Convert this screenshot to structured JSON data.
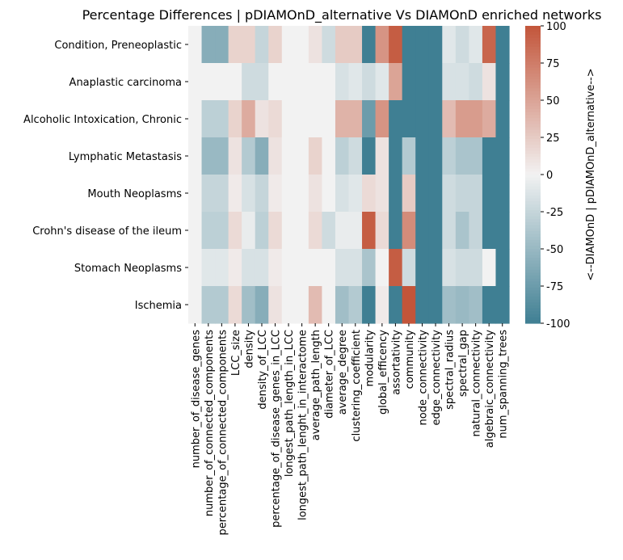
{
  "chart_data": {
    "type": "heatmap",
    "title": "Percentage Differences | pDIAMOnD_alternative Vs DIAMOnD enriched networks",
    "rows": [
      "Condition, Preneoplastic",
      "Anaplastic carcinoma",
      "Alcoholic Intoxication, Chronic",
      "Lymphatic Metastasis",
      "Mouth Neoplasms",
      "Crohn's disease of the ileum",
      "Stomach Neoplasms",
      "Ischemia"
    ],
    "columns": [
      "number_of_disease_genes",
      "number_of_connected_components",
      "percentage_of_connected_components",
      "LCC_size",
      "density",
      "density_of_LCC",
      "percentage_of_disease_genes_in_LCC",
      "longest_path_length_in_LCC",
      "longest_path_lenght_in_interactome",
      "average_path_length",
      "diameter_of_LCC",
      "average_degree",
      "clustering_coefficient",
      "modularity",
      "global_efficency",
      "assortativity",
      "community",
      "node_connectivity",
      "edge_connectivity",
      "spectral_radius",
      "spectral_gap",
      "natural_connectivity",
      "algebraic_connectivity",
      "num_spanning_trees"
    ],
    "values": [
      [
        0,
        -60,
        -60,
        20,
        20,
        -25,
        20,
        0,
        0,
        10,
        -20,
        25,
        25,
        -100,
        60,
        95,
        -100,
        -100,
        -100,
        -10,
        -20,
        -10,
        90,
        -100
      ],
      [
        0,
        0,
        0,
        0,
        -20,
        -20,
        0,
        0,
        0,
        0,
        0,
        -15,
        -10,
        -20,
        -10,
        50,
        -100,
        -100,
        -100,
        -15,
        -15,
        -20,
        10,
        -100
      ],
      [
        0,
        -30,
        -30,
        20,
        45,
        10,
        15,
        0,
        0,
        0,
        0,
        40,
        40,
        -75,
        60,
        -100,
        -100,
        -100,
        -100,
        35,
        55,
        55,
        45,
        -100
      ],
      [
        0,
        -50,
        -50,
        10,
        -35,
        -60,
        10,
        0,
        0,
        20,
        0,
        -30,
        -20,
        -100,
        10,
        -100,
        -35,
        -100,
        -100,
        -30,
        -40,
        -40,
        -100,
        -100
      ],
      [
        0,
        -25,
        -25,
        5,
        -15,
        -25,
        5,
        0,
        0,
        10,
        0,
        -15,
        -10,
        15,
        10,
        -100,
        25,
        -100,
        -100,
        -20,
        -25,
        -25,
        -100,
        -100
      ],
      [
        0,
        -30,
        -30,
        15,
        -5,
        -30,
        15,
        0,
        0,
        15,
        -20,
        -5,
        -5,
        95,
        15,
        -100,
        65,
        -100,
        -100,
        -20,
        -40,
        -25,
        -100,
        -100
      ],
      [
        0,
        -10,
        -10,
        5,
        -15,
        -15,
        5,
        0,
        0,
        0,
        0,
        -15,
        -15,
        -40,
        0,
        95,
        -20,
        -100,
        -100,
        -15,
        -20,
        -20,
        0,
        -100
      ],
      [
        0,
        -35,
        -35,
        15,
        -45,
        -60,
        10,
        0,
        0,
        35,
        0,
        -45,
        -35,
        -100,
        5,
        -100,
        100,
        -100,
        -100,
        -45,
        -50,
        -45,
        -100,
        -100
      ]
    ],
    "colorbar": {
      "min": -100,
      "max": 100,
      "ticks": [
        -100,
        -75,
        -50,
        -25,
        0,
        25,
        50,
        75,
        100
      ],
      "label": "<--DIAMOnD  |  pDIAMOnD_alternative-->"
    },
    "colors": {
      "negative": "#3f7f93",
      "neutral": "#f2f2f2",
      "positive": "#c3553a"
    }
  }
}
